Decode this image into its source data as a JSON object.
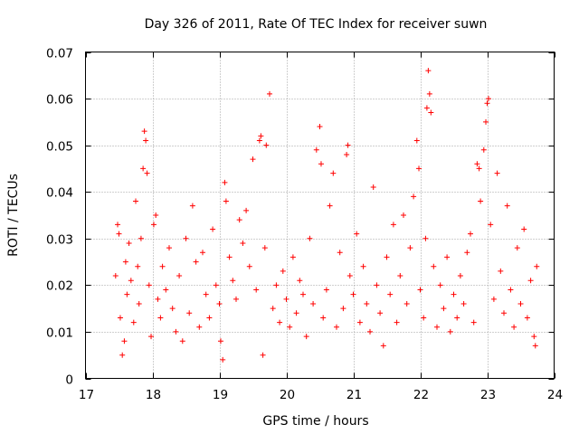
{
  "chart_data": {
    "type": "scatter",
    "title": "Day 326 of 2011, Rate Of TEC Index for receiver suwn",
    "xlabel": "GPS time / hours",
    "ylabel": "ROTI / TECUs",
    "xlim": [
      17,
      24
    ],
    "ylim": [
      0,
      0.07
    ],
    "x_ticks": [
      {
        "value": 17,
        "label": "17"
      },
      {
        "value": 18,
        "label": "18"
      },
      {
        "value": 19,
        "label": "19"
      },
      {
        "value": 20,
        "label": "20"
      },
      {
        "value": 21,
        "label": "21"
      },
      {
        "value": 22,
        "label": "22"
      },
      {
        "value": 23,
        "label": "23"
      },
      {
        "value": 24,
        "label": "24"
      }
    ],
    "y_ticks": [
      {
        "value": 0,
        "label": "0"
      },
      {
        "value": 0.01,
        "label": "0.01"
      },
      {
        "value": 0.02,
        "label": "0.02"
      },
      {
        "value": 0.03,
        "label": "0.03"
      },
      {
        "value": 0.04,
        "label": "0.04"
      },
      {
        "value": 0.05,
        "label": "0.05"
      },
      {
        "value": 0.06,
        "label": "0.06"
      },
      {
        "value": 0.07,
        "label": "0.07"
      }
    ],
    "grid": true,
    "marker": "plus",
    "series": [
      {
        "name": "suwn",
        "color": "#ff0000",
        "points": [
          [
            17.45,
            0.022
          ],
          [
            17.48,
            0.033
          ],
          [
            17.5,
            0.031
          ],
          [
            17.52,
            0.013
          ],
          [
            17.55,
            0.005
          ],
          [
            17.58,
            0.008
          ],
          [
            17.6,
            0.025
          ],
          [
            17.62,
            0.018
          ],
          [
            17.65,
            0.029
          ],
          [
            17.68,
            0.021
          ],
          [
            17.72,
            0.012
          ],
          [
            17.75,
            0.038
          ],
          [
            17.78,
            0.024
          ],
          [
            17.8,
            0.016
          ],
          [
            17.83,
            0.03
          ],
          [
            17.86,
            0.045
          ],
          [
            17.88,
            0.053
          ],
          [
            17.9,
            0.051
          ],
          [
            17.92,
            0.044
          ],
          [
            17.95,
            0.02
          ],
          [
            17.98,
            0.009
          ],
          [
            18.02,
            0.033
          ],
          [
            18.05,
            0.035
          ],
          [
            18.08,
            0.017
          ],
          [
            18.12,
            0.013
          ],
          [
            18.15,
            0.024
          ],
          [
            18.2,
            0.019
          ],
          [
            18.25,
            0.028
          ],
          [
            18.3,
            0.015
          ],
          [
            18.35,
            0.01
          ],
          [
            18.4,
            0.022
          ],
          [
            18.45,
            0.008
          ],
          [
            18.5,
            0.03
          ],
          [
            18.55,
            0.014
          ],
          [
            18.6,
            0.037
          ],
          [
            18.65,
            0.025
          ],
          [
            18.7,
            0.011
          ],
          [
            18.75,
            0.027
          ],
          [
            18.8,
            0.018
          ],
          [
            18.85,
            0.013
          ],
          [
            18.9,
            0.032
          ],
          [
            18.95,
            0.02
          ],
          [
            19.0,
            0.016
          ],
          [
            19.02,
            0.008
          ],
          [
            19.05,
            0.004
          ],
          [
            19.08,
            0.042
          ],
          [
            19.1,
            0.038
          ],
          [
            19.15,
            0.026
          ],
          [
            19.2,
            0.021
          ],
          [
            19.25,
            0.017
          ],
          [
            19.3,
            0.034
          ],
          [
            19.35,
            0.029
          ],
          [
            19.4,
            0.036
          ],
          [
            19.45,
            0.024
          ],
          [
            19.5,
            0.047
          ],
          [
            19.55,
            0.019
          ],
          [
            19.6,
            0.051
          ],
          [
            19.62,
            0.052
          ],
          [
            19.65,
            0.005
          ],
          [
            19.68,
            0.028
          ],
          [
            19.7,
            0.05
          ],
          [
            19.75,
            0.061
          ],
          [
            19.8,
            0.015
          ],
          [
            19.85,
            0.02
          ],
          [
            19.9,
            0.012
          ],
          [
            19.95,
            0.023
          ],
          [
            20.0,
            0.017
          ],
          [
            20.05,
            0.011
          ],
          [
            20.1,
            0.026
          ],
          [
            20.15,
            0.014
          ],
          [
            20.2,
            0.021
          ],
          [
            20.25,
            0.018
          ],
          [
            20.3,
            0.009
          ],
          [
            20.35,
            0.03
          ],
          [
            20.4,
            0.016
          ],
          [
            20.45,
            0.049
          ],
          [
            20.5,
            0.054
          ],
          [
            20.52,
            0.046
          ],
          [
            20.55,
            0.013
          ],
          [
            20.6,
            0.019
          ],
          [
            20.65,
            0.037
          ],
          [
            20.7,
            0.044
          ],
          [
            20.75,
            0.011
          ],
          [
            20.8,
            0.027
          ],
          [
            20.85,
            0.015
          ],
          [
            20.9,
            0.048
          ],
          [
            20.92,
            0.05
          ],
          [
            20.95,
            0.022
          ],
          [
            21.0,
            0.018
          ],
          [
            21.05,
            0.031
          ],
          [
            21.1,
            0.012
          ],
          [
            21.15,
            0.024
          ],
          [
            21.2,
            0.016
          ],
          [
            21.25,
            0.01
          ],
          [
            21.3,
            0.041
          ],
          [
            21.35,
            0.02
          ],
          [
            21.4,
            0.014
          ],
          [
            21.45,
            0.007
          ],
          [
            21.5,
            0.026
          ],
          [
            21.55,
            0.018
          ],
          [
            21.6,
            0.033
          ],
          [
            21.65,
            0.012
          ],
          [
            21.7,
            0.022
          ],
          [
            21.75,
            0.035
          ],
          [
            21.8,
            0.016
          ],
          [
            21.85,
            0.028
          ],
          [
            21.9,
            0.039
          ],
          [
            21.95,
            0.051
          ],
          [
            21.98,
            0.045
          ],
          [
            22.0,
            0.019
          ],
          [
            22.05,
            0.013
          ],
          [
            22.08,
            0.03
          ],
          [
            22.1,
            0.058
          ],
          [
            22.12,
            0.066
          ],
          [
            22.14,
            0.061
          ],
          [
            22.16,
            0.057
          ],
          [
            22.2,
            0.024
          ],
          [
            22.25,
            0.011
          ],
          [
            22.3,
            0.02
          ],
          [
            22.35,
            0.015
          ],
          [
            22.4,
            0.026
          ],
          [
            22.45,
            0.01
          ],
          [
            22.5,
            0.018
          ],
          [
            22.55,
            0.013
          ],
          [
            22.6,
            0.022
          ],
          [
            22.65,
            0.016
          ],
          [
            22.7,
            0.027
          ],
          [
            22.75,
            0.031
          ],
          [
            22.8,
            0.012
          ],
          [
            22.85,
            0.046
          ],
          [
            22.88,
            0.045
          ],
          [
            22.9,
            0.038
          ],
          [
            22.95,
            0.049
          ],
          [
            22.98,
            0.055
          ],
          [
            23.0,
            0.059
          ],
          [
            23.02,
            0.06
          ],
          [
            23.05,
            0.033
          ],
          [
            23.1,
            0.017
          ],
          [
            23.15,
            0.044
          ],
          [
            23.2,
            0.023
          ],
          [
            23.25,
            0.014
          ],
          [
            23.3,
            0.037
          ],
          [
            23.35,
            0.019
          ],
          [
            23.4,
            0.011
          ],
          [
            23.45,
            0.028
          ],
          [
            23.5,
            0.016
          ],
          [
            23.55,
            0.032
          ],
          [
            23.6,
            0.013
          ],
          [
            23.65,
            0.021
          ],
          [
            23.7,
            0.009
          ],
          [
            23.72,
            0.007
          ],
          [
            23.74,
            0.024
          ]
        ]
      }
    ]
  }
}
